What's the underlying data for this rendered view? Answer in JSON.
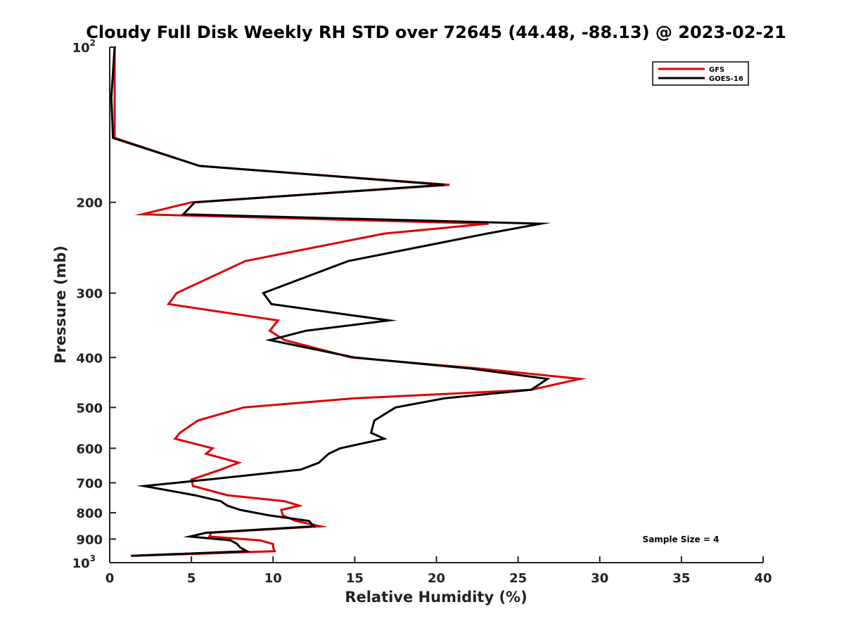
{
  "chart_data": {
    "type": "line",
    "title": "Cloudy Full Disk Weekly RH STD over 72645 (44.48, -88.13) @ 2023-02-21",
    "xlabel": "Relative Humidity (%)",
    "ylabel": "Pressure (mb)",
    "xlim": [
      0,
      40
    ],
    "ylim": [
      100,
      1000
    ],
    "y_scale": "log",
    "y_reversed": true,
    "x_ticks": [
      "0",
      "5",
      "10",
      "15",
      "20",
      "25",
      "30",
      "35",
      "40"
    ],
    "y_ticks": [
      {
        "value": 100,
        "label": "10",
        "sup": "2"
      },
      {
        "value": 200,
        "label": "200",
        "sup": ""
      },
      {
        "value": 300,
        "label": "300",
        "sup": ""
      },
      {
        "value": 400,
        "label": "400",
        "sup": ""
      },
      {
        "value": 500,
        "label": "500",
        "sup": ""
      },
      {
        "value": 600,
        "label": "600",
        "sup": ""
      },
      {
        "value": 700,
        "label": "700",
        "sup": ""
      },
      {
        "value": 800,
        "label": "800",
        "sup": ""
      },
      {
        "value": 900,
        "label": "900",
        "sup": ""
      },
      {
        "value": 1000,
        "label": "10",
        "sup": "3"
      }
    ],
    "legend_position": "top-right",
    "grid": false,
    "annotation": "Sample Size = 4",
    "series": [
      {
        "name": "GFS",
        "color": "#e00000",
        "points": [
          [
            0.3,
            100
          ],
          [
            0.3,
            125
          ],
          [
            0.3,
            150
          ],
          [
            5.5,
            170
          ],
          [
            20.8,
            185
          ],
          [
            5.0,
            200
          ],
          [
            2.0,
            211
          ],
          [
            23.2,
            220
          ],
          [
            16.8,
            230
          ],
          [
            8.3,
            260
          ],
          [
            4.1,
            300
          ],
          [
            3.6,
            315
          ],
          [
            10.3,
            339
          ],
          [
            9.8,
            355
          ],
          [
            10.7,
            370
          ],
          [
            14.8,
            400
          ],
          [
            22.5,
            420
          ],
          [
            28.8,
            440
          ],
          [
            25.8,
            462
          ],
          [
            15.0,
            480
          ],
          [
            8.2,
            500
          ],
          [
            5.4,
            530
          ],
          [
            4.3,
            560
          ],
          [
            4.0,
            575
          ],
          [
            6.3,
            600
          ],
          [
            5.9,
            615
          ],
          [
            7.9,
            640
          ],
          [
            6.8,
            660
          ],
          [
            5.0,
            690
          ],
          [
            5.1,
            710
          ],
          [
            7.2,
            740
          ],
          [
            10.7,
            760
          ],
          [
            11.6,
            775
          ],
          [
            10.5,
            790
          ],
          [
            10.6,
            810
          ],
          [
            11.4,
            830
          ],
          [
            12.9,
            850
          ],
          [
            6.2,
            875
          ],
          [
            6.1,
            890
          ],
          [
            9.2,
            905
          ],
          [
            10.0,
            920
          ],
          [
            10.0,
            935
          ],
          [
            10.1,
            950
          ],
          [
            1.5,
            970
          ]
        ]
      },
      {
        "name": "GOES-16",
        "color": "#000000",
        "points": [
          [
            0.3,
            100
          ],
          [
            0.1,
            125
          ],
          [
            0.2,
            150
          ],
          [
            5.5,
            170
          ],
          [
            20.5,
            185
          ],
          [
            5.2,
            200
          ],
          [
            4.5,
            211
          ],
          [
            26.4,
            220
          ],
          [
            23.1,
            230
          ],
          [
            14.6,
            260
          ],
          [
            9.4,
            300
          ],
          [
            9.9,
            315
          ],
          [
            17.1,
            339
          ],
          [
            12.0,
            355
          ],
          [
            9.8,
            370
          ],
          [
            15.0,
            400
          ],
          [
            22.0,
            420
          ],
          [
            26.8,
            440
          ],
          [
            25.8,
            462
          ],
          [
            20.5,
            480
          ],
          [
            17.5,
            500
          ],
          [
            16.2,
            530
          ],
          [
            16.0,
            560
          ],
          [
            16.8,
            575
          ],
          [
            14.1,
            600
          ],
          [
            13.4,
            615
          ],
          [
            12.8,
            640
          ],
          [
            11.7,
            660
          ],
          [
            6.0,
            690
          ],
          [
            2.1,
            710
          ],
          [
            5.2,
            740
          ],
          [
            6.8,
            760
          ],
          [
            7.2,
            775
          ],
          [
            8.0,
            790
          ],
          [
            9.8,
            810
          ],
          [
            12.2,
            830
          ],
          [
            12.5,
            850
          ],
          [
            5.9,
            875
          ],
          [
            4.9,
            890
          ],
          [
            7.4,
            905
          ],
          [
            7.8,
            920
          ],
          [
            8.0,
            935
          ],
          [
            8.4,
            950
          ],
          [
            1.3,
            970
          ]
        ]
      }
    ]
  }
}
